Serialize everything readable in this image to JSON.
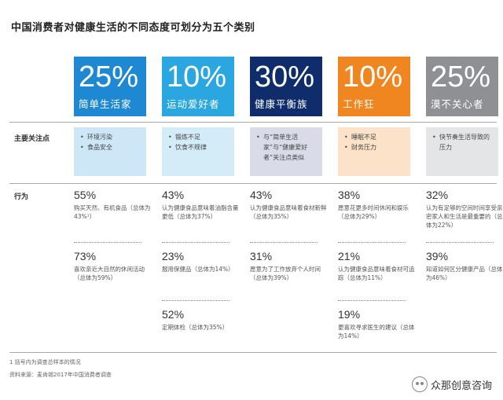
{
  "title": "中国消费者对健康生活的不同态度可划分为五个类别",
  "row_labels": {
    "concerns": "主要关注点",
    "behavior": "行为"
  },
  "segments": [
    {
      "pct": "25%",
      "name": "简单生活家",
      "color": "#1e88d2",
      "concern_bg": "#cde7f7",
      "concerns": [
        "环境污染",
        "食品安全"
      ],
      "stats": [
        {
          "v": "55%",
          "d": "购买天然、有机食品（总体为43%¹）"
        },
        {
          "v": "73%",
          "d": "喜欢亲近大自然的休闲活动（总体为59%）"
        }
      ]
    },
    {
      "pct": "10%",
      "name": "运动爱好者",
      "color": "#2aa7e0",
      "concern_bg": "#d3ecf8",
      "concerns": [
        "锻炼不足",
        "饮食不规律"
      ],
      "stats": [
        {
          "v": "43%",
          "d": "认为健康食品意味着油脂含量更低（总体为37%）"
        },
        {
          "v": "23%",
          "d": "服用保健品（总体为14%）"
        },
        {
          "v": "52%",
          "d": "定期体检（总体为35%）"
        }
      ]
    },
    {
      "pct": "30%",
      "name": "健康平衡族",
      "color": "#0f2d6b",
      "concern_bg": "#d9dce8",
      "concerns": [
        "与“简单生活家”与“健康爱好者”关注点类似"
      ],
      "stats": [
        {
          "v": "43%",
          "d": "认为健康食品意味着食材新鲜（总体为35%）"
        },
        {
          "v": "31%",
          "d": "愿意为了工作放弃个人时间（总体为39%）"
        }
      ]
    },
    {
      "pct": "10%",
      "name": "工作狂",
      "color": "#f0861f",
      "concern_bg": "#fbe2c8",
      "concerns": [
        "睡眠不足",
        "财务压力"
      ],
      "stats": [
        {
          "v": "38%",
          "d": "愿意花更多时间休闲和娱乐（总体为29%）"
        },
        {
          "v": "21%",
          "d": "认为健康食品意味着食材可追踪（总体为11%）"
        },
        {
          "v": "19%",
          "d": "更喜欢寻求医生的建议（总体为14%）"
        }
      ]
    },
    {
      "pct": "25%",
      "name": "漠不关心者",
      "color": "#8e9093",
      "concern_bg": "#e4e5e6",
      "concerns": [
        "快节奏生活导致的压力"
      ],
      "stats": [
        {
          "v": "32%",
          "d": "认为有足够的空间时间享受亲密家人和生活是最重要的（总体为22%）"
        },
        {
          "v": "39%",
          "d": "知道如何区分健康产品（总体为46%）"
        }
      ]
    }
  ],
  "footnotes": [
    "1 括号内为调查总样本的情况",
    "资料来源：麦肯锡2017年中国消费者调查"
  ],
  "watermark": "众那创意咨询"
}
